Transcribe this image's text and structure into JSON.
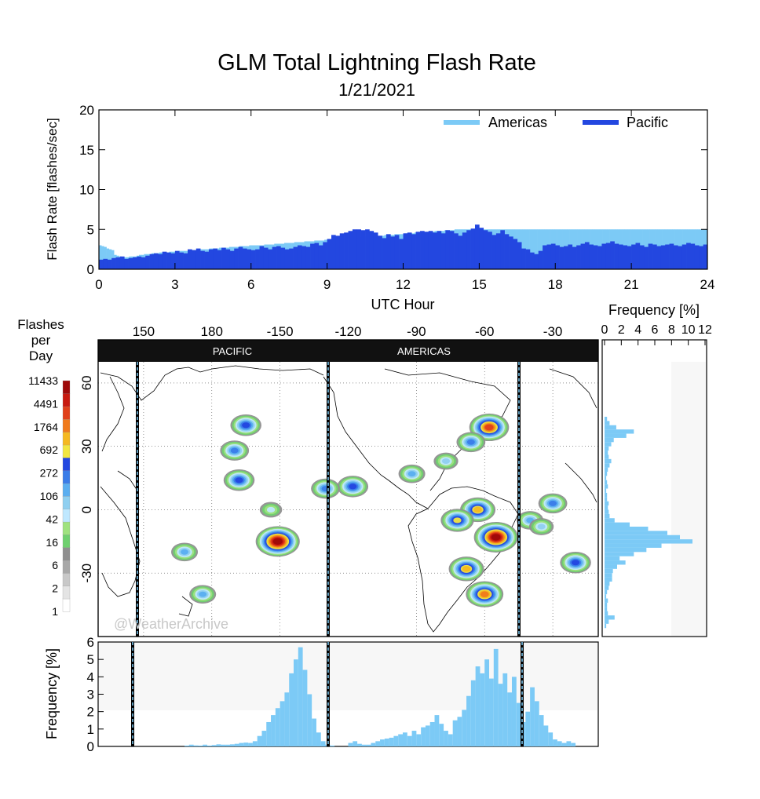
{
  "chart_data": [
    {
      "type": "bar",
      "title": "GLM Total Lightning Flash Rate",
      "subtitle": "1/21/2021",
      "xlabel": "UTC Hour",
      "ylabel": "Flash Rate [flashes/sec]",
      "xlim": [
        0,
        24
      ],
      "ylim": [
        0,
        20
      ],
      "xticks": [
        "0",
        "3",
        "6",
        "9",
        "12",
        "15",
        "18",
        "21",
        "24"
      ],
      "yticks": [
        "0",
        "5",
        "10",
        "15",
        "20"
      ],
      "bin_hours": 0.25,
      "series": [
        {
          "name": "Americas",
          "color": "#7ccaf6",
          "values": [
            3.0,
            2.9,
            2.8,
            2.6,
            2.5,
            2.4,
            1.8,
            1.7,
            1.6,
            1.5,
            1.5,
            1.5,
            1.6,
            1.6,
            1.6,
            1.7,
            1.8,
            1.8,
            1.9,
            1.9,
            1.9,
            2.0,
            2.0,
            2.0,
            2.1,
            2.1,
            2.1,
            2.1,
            2.2,
            2.2,
            2.2,
            2.2,
            2.3,
            2.3,
            2.3,
            2.3,
            2.4,
            2.4,
            2.4,
            2.4,
            2.5,
            2.5,
            2.5,
            2.5,
            2.6,
            2.6,
            2.6,
            2.6,
            2.7,
            2.7,
            2.7,
            2.7,
            2.8,
            2.8,
            2.8,
            2.8,
            2.9,
            2.9,
            2.9,
            2.9,
            3.0,
            3.0,
            3.0,
            3.0,
            3.0,
            3.0,
            3.1,
            3.1,
            3.1,
            3.1,
            3.2,
            3.2,
            3.2,
            3.2,
            3.3,
            3.3,
            3.3,
            3.3,
            3.4,
            3.4,
            3.4,
            3.4,
            3.5,
            3.5,
            3.5,
            3.5,
            3.6,
            3.6,
            3.6,
            3.6,
            3.7,
            3.7,
            3.7,
            3.7,
            3.8,
            3.8,
            3.8,
            3.8,
            3.9,
            3.9,
            3.9,
            3.9,
            4.0,
            4.0,
            4.0,
            4.0,
            4.1,
            4.1,
            4.1,
            4.1,
            4.2,
            4.2,
            4.2,
            4.2,
            4.3,
            4.3,
            4.3,
            4.3,
            4.4,
            4.4,
            4.4,
            4.4,
            4.5,
            4.5,
            4.5,
            4.5,
            4.6,
            4.6,
            4.6,
            4.6,
            4.7,
            4.7,
            4.7,
            4.7,
            4.8,
            4.8,
            4.8,
            4.8,
            4.9,
            4.9,
            4.9,
            4.9,
            5.0,
            5.0,
            5.0,
            5.0,
            5.0,
            5.0,
            5.0,
            5.0,
            5.0,
            5.0,
            5.0,
            5.0,
            5.0,
            5.0,
            5.0,
            5.0,
            5.0,
            5.0,
            5.0,
            5.0,
            5.0,
            5.0,
            5.0,
            5.0,
            5.0,
            5.0,
            5.0,
            5.0,
            5.0,
            5.0,
            5.0,
            5.0,
            5.0,
            5.0,
            5.0,
            5.0,
            5.0,
            5.0,
            5.0,
            5.0,
            5.0,
            5.0,
            5.0,
            5.0,
            5.0,
            5.0,
            5.0,
            5.0,
            5.0,
            5.0,
            5.0,
            5.0,
            5.0,
            5.0,
            5.0,
            5.0,
            5.0,
            5.0,
            5.0,
            5.0,
            5.0,
            5.0,
            5.0,
            5.0,
            5.0,
            5.0,
            5.0,
            5.0,
            5.0,
            5.0,
            5.0,
            5.0,
            5.0,
            5.0,
            5.0,
            5.0,
            5.0,
            5.0,
            5.0,
            5.0,
            5.0,
            5.0,
            5.0,
            5.0,
            5.0,
            5.0,
            5.0,
            5.0,
            5.0,
            5.0,
            5.0,
            5.0,
            5.0,
            5.0,
            5.0,
            5.0,
            5.0,
            5.0,
            5.0,
            5.0,
            5.0
          ]
        },
        {
          "name": "Pacific",
          "color": "#2347e0",
          "values": [
            1.2,
            1.3,
            1.2,
            1.4,
            1.5,
            1.6,
            1.3,
            1.4,
            1.5,
            1.6,
            1.5,
            1.7,
            1.9,
            2.0,
            1.9,
            2.2,
            2.1,
            2.0,
            2.3,
            2.1,
            2.0,
            2.5,
            2.4,
            2.6,
            2.3,
            2.2,
            2.5,
            2.6,
            2.4,
            2.7,
            2.5,
            2.3,
            2.6,
            2.8,
            2.6,
            2.5,
            2.4,
            2.5,
            2.9,
            2.7,
            2.5,
            2.8,
            2.9,
            2.7,
            2.5,
            2.6,
            2.8,
            3.0,
            2.9,
            2.8,
            3.2,
            3.3,
            3.0,
            3.4,
            3.8,
            4.3,
            4.2,
            4.5,
            4.6,
            4.8,
            5.0,
            5.0,
            4.9,
            5.0,
            4.8,
            4.6,
            4.2,
            3.9,
            4.4,
            4.1,
            4.3,
            3.8,
            4.5,
            4.6,
            4.4,
            4.7,
            4.8,
            4.7,
            4.8,
            4.6,
            4.8,
            4.5,
            4.9,
            4.8,
            4.5,
            4.2,
            4.6,
            4.9,
            5.1,
            5.6,
            5.2,
            4.9,
            4.7,
            4.3,
            4.5,
            4.9,
            4.4,
            4.1,
            3.8,
            3.4,
            2.6,
            2.5,
            2.1,
            1.9,
            2.3,
            3.0,
            3.1,
            3.2,
            3.0,
            2.8,
            2.9,
            3.1,
            2.8,
            3.0,
            3.2,
            3.4,
            3.1,
            3.0,
            2.9,
            3.2,
            3.3,
            3.5,
            3.2,
            3.1,
            3.0,
            2.9,
            3.1,
            3.3,
            3.0,
            2.8,
            3.2,
            3.1,
            2.9,
            3.0,
            3.1,
            3.2,
            3.0,
            2.9,
            3.1,
            3.3,
            3.2,
            3.0,
            2.9,
            3.1
          ]
        }
      ],
      "legend": "top-right"
    },
    {
      "type": "heatmap",
      "title": "Flashes per Day",
      "colorbar_labels": [
        "11433",
        "4491",
        "1764",
        "692",
        "272",
        "106",
        "42",
        "16",
        "6",
        "2",
        "1"
      ],
      "colorbar_colors": [
        "#ffffff",
        "#e4e4e4",
        "#c8c8c8",
        "#a8a8a8",
        "#8f8f8f",
        "#6fd06f",
        "#9fe27f",
        "#bfe8ff",
        "#8fcff0",
        "#5aaef0",
        "#3a7ce8",
        "#2347e0",
        "#f2e640",
        "#f5b820",
        "#f07a1c",
        "#e0401a",
        "#c81a10",
        "#9e0a0a"
      ],
      "top_axis_ticks": [
        "150",
        "180",
        "-150",
        "-120",
        "-90",
        "-60",
        "-30"
      ],
      "lat_ticks": [
        "60",
        "30",
        "0",
        "-30"
      ],
      "regions": [
        "PACIFIC",
        "AMERICAS"
      ],
      "watermark": "@WeatherArchive",
      "hotspots": [
        {
          "lon": -151,
          "lat": -15,
          "level": 17
        },
        {
          "lon": -55,
          "lat": -13,
          "level": 17
        },
        {
          "lon": -58,
          "lat": 39,
          "level": 15
        },
        {
          "lon": -63,
          "lat": 0,
          "level": 13
        },
        {
          "lon": -72,
          "lat": -5,
          "level": 12
        },
        {
          "lon": -68,
          "lat": -28,
          "level": 13
        },
        {
          "lon": -165,
          "lat": 40,
          "level": 11
        },
        {
          "lon": -168,
          "lat": 14,
          "level": 11
        },
        {
          "lon": -118,
          "lat": 11,
          "level": 11
        },
        {
          "lon": -130,
          "lat": 10,
          "level": 10
        },
        {
          "lon": -30,
          "lat": 3,
          "level": 10
        },
        {
          "lon": -170,
          "lat": 28,
          "level": 10
        },
        {
          "lon": -20,
          "lat": -25,
          "level": 11
        },
        {
          "lon": 176,
          "lat": -40,
          "level": 9
        },
        {
          "lon": -92,
          "lat": 17,
          "level": 9
        },
        {
          "lon": -77,
          "lat": 23,
          "level": 8
        },
        {
          "lon": -60,
          "lat": -40,
          "level": 14
        },
        {
          "lon": -66,
          "lat": 32,
          "level": 10
        },
        {
          "lon": 168,
          "lat": -20,
          "level": 9
        },
        {
          "lon": -154,
          "lat": 0,
          "level": 7
        },
        {
          "lon": -40,
          "lat": -5,
          "level": 9
        },
        {
          "lon": -35,
          "lat": -8,
          "level": 8
        }
      ]
    },
    {
      "type": "bar",
      "title": "Frequency [%]",
      "orientation": "horizontal",
      "xticks": [
        "0",
        "2",
        "4",
        "6",
        "8",
        "10",
        "12"
      ],
      "xlim": [
        0,
        12
      ],
      "ylim": [
        -60,
        70
      ],
      "lat_bins": [
        -55,
        -53,
        -51,
        -49,
        -47,
        -45,
        -43,
        -41,
        -39,
        -37,
        -35,
        -33,
        -31,
        -29,
        -27,
        -25,
        -23,
        -21,
        -19,
        -17,
        -15,
        -13,
        -11,
        -9,
        -7,
        -5,
        -3,
        -1,
        1,
        3,
        5,
        7,
        9,
        11,
        13,
        15,
        17,
        19,
        21,
        23,
        25,
        27,
        29,
        31,
        33,
        35,
        37,
        39,
        41,
        43
      ],
      "values": [
        0.2,
        0.5,
        1.2,
        0.4,
        0.3,
        0.3,
        0.4,
        0.2,
        0.3,
        0.5,
        0.6,
        0.9,
        0.9,
        1.0,
        1.5,
        2.5,
        1.8,
        3.5,
        5.0,
        6.8,
        10.5,
        9.0,
        7.5,
        5.2,
        3.0,
        1.2,
        0.6,
        0.5,
        0.4,
        0.5,
        0.3,
        0.3,
        0.2,
        0.4,
        0.3,
        0.2,
        0.3,
        0.4,
        0.6,
        0.8,
        0.5,
        0.4,
        0.5,
        0.8,
        1.1,
        2.6,
        3.5,
        1.4,
        0.6,
        0.3
      ]
    },
    {
      "type": "bar",
      "title": "Frequency [%]",
      "ylabel": "Frequency [%]",
      "yticks": [
        "0",
        "1",
        "2",
        "3",
        "4",
        "5",
        "6"
      ],
      "ylim": [
        0,
        6
      ],
      "xlim": [
        130,
        350
      ],
      "lon_bins_start": 184,
      "lon_bin_width": 2,
      "pacific_values": [
        0.05,
        0.1,
        0.06,
        0.05,
        0.1,
        0.05,
        0.08,
        0.12,
        0.1,
        0.1,
        0.12,
        0.15,
        0.2,
        0.22,
        0.2,
        0.3,
        0.6,
        0.9,
        1.4,
        1.8,
        2.2,
        2.6,
        3.1,
        4.2,
        5.0,
        5.7,
        4.4,
        3.0,
        1.6,
        0.8,
        0.3,
        0.1,
        0.05
      ],
      "pacific_start": 168,
      "americas_values": [
        0.2,
        0.3,
        0.15,
        0.1,
        0.1,
        0.2,
        0.3,
        0.4,
        0.45,
        0.5,
        0.6,
        0.7,
        0.8,
        0.6,
        0.9,
        0.7,
        1.1,
        1.2,
        1.4,
        1.8,
        1.3,
        0.9,
        0.7,
        1.5,
        1.7,
        2.1,
        2.9,
        3.8,
        4.6,
        4.2,
        5.0,
        3.9,
        5.6,
        3.6,
        4.2,
        3.1,
        4.0,
        2.5,
        1.4,
        2.0,
        3.4,
        2.6,
        1.8,
        1.2,
        0.8,
        0.4,
        0.3,
        0.2,
        0.3,
        0.2
      ],
      "americas_start": 240,
      "color": "#7ccaf6"
    }
  ],
  "labels": {
    "title": "GLM Total Lightning Flash Rate",
    "date": "1/21/2021",
    "x_axis_title": "UTC Hour",
    "y_axis_title": "Flash Rate [flashes/sec]",
    "legend_americas": "Americas",
    "legend_pacific": "Pacific",
    "colorbar_title_1": "Flashes",
    "colorbar_title_2": "per",
    "colorbar_title_3": "Day",
    "right_hist_title": "Frequency [%]",
    "bottom_hist_ylabel": "Frequency [%]",
    "region_pacific": "PACIFIC",
    "region_americas": "AMERICAS",
    "watermark": "@WeatherArchive"
  }
}
